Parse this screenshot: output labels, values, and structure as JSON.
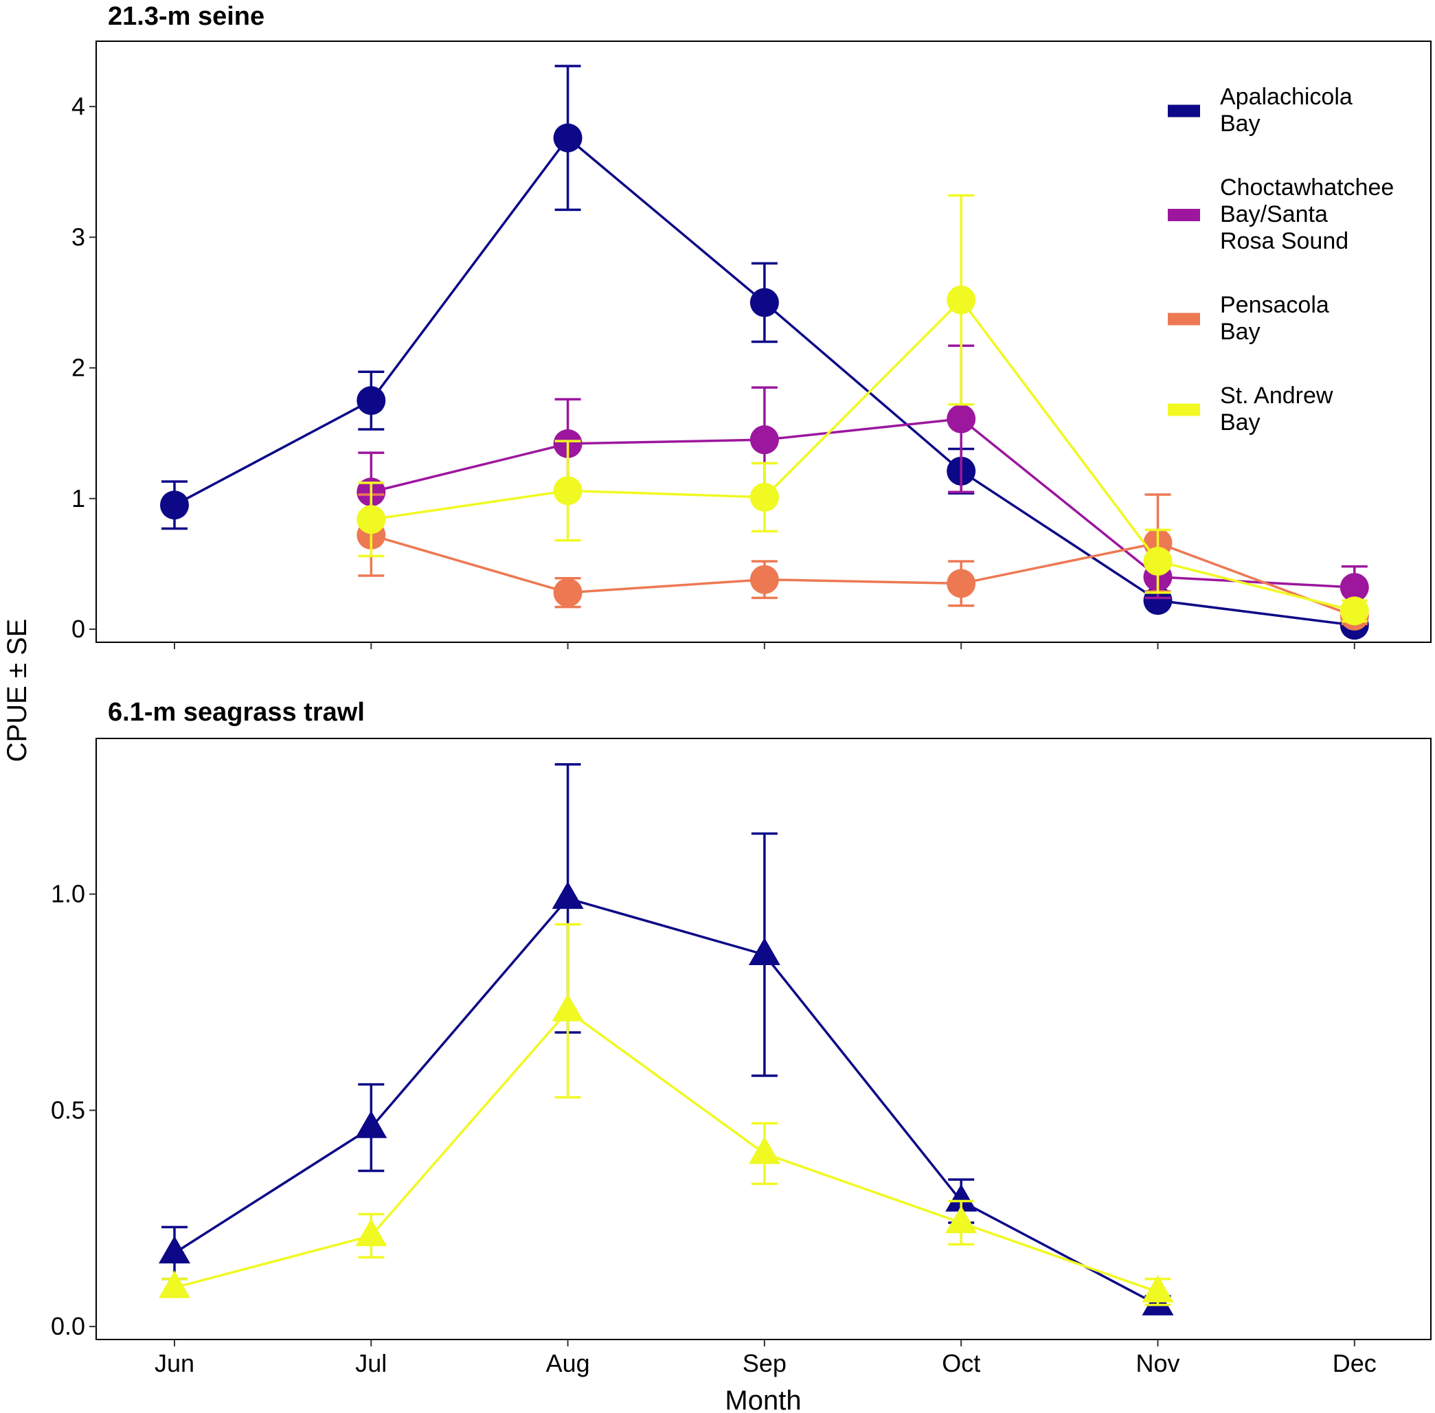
{
  "chart_data": [
    {
      "type": "line",
      "title": "21.3-m seine",
      "xlabel": "Month",
      "ylabel": "CPUE ± SE",
      "categories": [
        "Jun",
        "Jul",
        "Aug",
        "Sep",
        "Oct",
        "Nov",
        "Dec"
      ],
      "ylim": [
        -0.1,
        4.5
      ],
      "yticks": [
        0,
        1,
        2,
        3,
        4
      ],
      "ytick_labels": [
        "0",
        "1",
        "2",
        "3",
        "4"
      ],
      "marker": "circle",
      "grid": false,
      "legend": "top-right",
      "series": [
        {
          "name": "Apalachicola Bay",
          "label_lines": [
            "Apalachicola",
            "Bay"
          ],
          "color": "#0D0887",
          "values": [
            0.95,
            1.75,
            3.76,
            2.5,
            1.21,
            0.22,
            0.03
          ],
          "err": [
            0.18,
            0.22,
            0.55,
            0.3,
            0.17,
            0.04,
            0.02
          ]
        },
        {
          "name": "Choctawhatchee Bay/Santa Rosa Sound",
          "label_lines": [
            "Choctawhatchee",
            "Bay/Santa",
            "Rosa Sound"
          ],
          "color": "#9C179E",
          "values": [
            null,
            1.05,
            1.42,
            1.45,
            1.61,
            0.4,
            0.32
          ],
          "err": [
            null,
            0.3,
            0.34,
            0.4,
            0.56,
            0.16,
            0.16
          ]
        },
        {
          "name": "Pensacola Bay",
          "label_lines": [
            "Pensacola",
            "Bay"
          ],
          "color": "#ED7953",
          "values": [
            null,
            0.72,
            0.28,
            0.38,
            0.35,
            0.66,
            0.1
          ],
          "err": [
            null,
            0.31,
            0.11,
            0.14,
            0.17,
            0.37,
            0.06
          ]
        },
        {
          "name": "St. Andrew Bay",
          "label_lines": [
            "St. Andrew",
            "Bay"
          ],
          "color": "#F0F921",
          "values": [
            null,
            0.84,
            1.06,
            1.01,
            2.52,
            0.52,
            0.14
          ],
          "err": [
            null,
            0.28,
            0.38,
            0.26,
            0.8,
            0.24,
            0.08
          ]
        }
      ]
    },
    {
      "type": "line",
      "title": "6.1-m seagrass trawl",
      "xlabel": "Month",
      "ylabel": "CPUE ± SE",
      "categories": [
        "Jun",
        "Jul",
        "Aug",
        "Sep",
        "Oct",
        "Nov",
        "Dec"
      ],
      "ylim": [
        -0.03,
        1.36
      ],
      "yticks": [
        0,
        0.5,
        1.0
      ],
      "ytick_labels": [
        "0.0",
        "0.5",
        "1.0"
      ],
      "marker": "triangle",
      "grid": false,
      "series": [
        {
          "name": "Apalachicola Bay",
          "color": "#0D0887",
          "values": [
            0.17,
            0.46,
            0.99,
            0.86,
            0.29,
            0.05,
            null
          ],
          "err": [
            0.06,
            0.1,
            0.31,
            0.28,
            0.05,
            0.02,
            null
          ]
        },
        {
          "name": "St. Andrew Bay",
          "color": "#F0F921",
          "values": [
            0.09,
            0.21,
            0.73,
            0.4,
            0.24,
            0.08,
            null
          ],
          "err": [
            0.02,
            0.05,
            0.2,
            0.07,
            0.05,
            0.03,
            null
          ]
        }
      ]
    }
  ]
}
